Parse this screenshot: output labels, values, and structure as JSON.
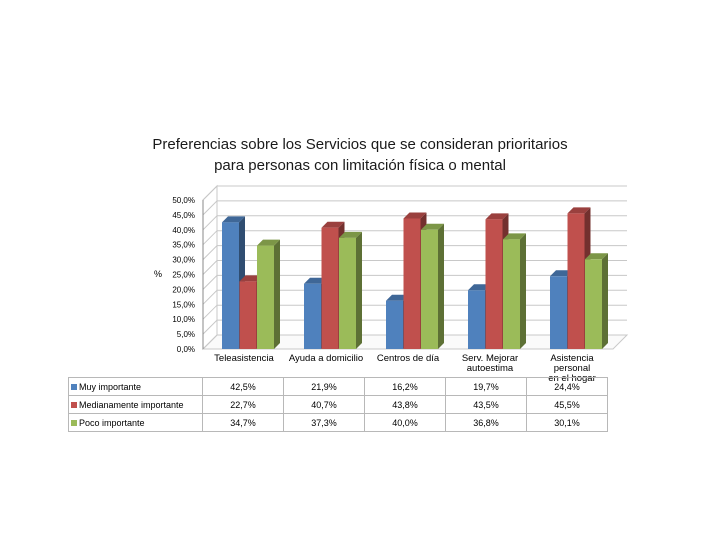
{
  "chart_data": {
    "type": "bar",
    "title": "Preferencias sobre los Servicios que se consideran prioritarios para personas con limitación física o mental",
    "title_lines": [
      "Preferencias sobre los Servicios que se consideran prioritarios",
      "para personas con limitación física o mental"
    ],
    "ylabel": "%",
    "ylim": [
      0,
      50
    ],
    "ytick_labels": [
      "0,0%",
      "5,0%",
      "10,0%",
      "15,0%",
      "20,0%",
      "25,0%",
      "30,0%",
      "35,0%",
      "40,0%",
      "45,0%",
      "50,0%"
    ],
    "categories": [
      "Teleasistencia",
      "Ayuda a domicilio",
      "Centros de día",
      "Serv. Mejorar autoestima",
      "Asistencia personal en el hogar"
    ],
    "category_lines": [
      [
        "Teleasistencia"
      ],
      [
        "Ayuda a domicilio"
      ],
      [
        "Centros de día"
      ],
      [
        "Serv. Mejorar",
        "autoestima"
      ],
      [
        "Asistencia personal",
        "en el hogar"
      ]
    ],
    "series": [
      {
        "name": "Muy importante",
        "color": "#4F81BD",
        "values": [
          42.5,
          21.9,
          16.2,
          19.7,
          24.4
        ],
        "labels": [
          "42,5%",
          "21,9%",
          "16,2%",
          "19,7%",
          "24,4%"
        ]
      },
      {
        "name": "Medianamente importante",
        "color": "#C0504D",
        "values": [
          22.7,
          40.7,
          43.8,
          43.5,
          45.5
        ],
        "labels": [
          "22,7%",
          "40,7%",
          "43,8%",
          "43,5%",
          "45,5%"
        ]
      },
      {
        "name": "Poco importante",
        "color": "#9BBB59",
        "values": [
          34.7,
          37.3,
          40.0,
          36.8,
          30.1
        ],
        "labels": [
          "34,7%",
          "37,3%",
          "40,0%",
          "36,8%",
          "30,1%"
        ]
      }
    ],
    "grid": true,
    "legend": "data-table-below"
  }
}
